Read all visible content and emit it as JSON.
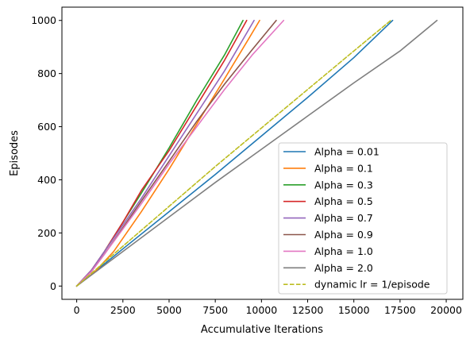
{
  "chart_data": {
    "type": "line",
    "title": "",
    "xlabel": "Accumulative Iterations",
    "ylabel": "Episodes",
    "xlim": [
      -800,
      20900
    ],
    "ylim": [
      -50,
      1050
    ],
    "xticks": [
      0,
      2500,
      5000,
      7500,
      10000,
      12500,
      15000,
      17500,
      20000
    ],
    "xtick_labels": [
      "0",
      "2500",
      "5000",
      "7500",
      "10000",
      "12500",
      "15000",
      "17500",
      "20000"
    ],
    "yticks": [
      0,
      200,
      400,
      600,
      800,
      1000
    ],
    "ytick_labels": [
      "0",
      "200",
      "400",
      "600",
      "800",
      "1000"
    ],
    "grid": false,
    "legend_position": "lower-right",
    "series": [
      {
        "name": "Alpha = 0.01",
        "color": "#1f77b4",
        "dash": "solid",
        "x": [
          0,
          1000,
          2500,
          5000,
          7500,
          10000,
          12500,
          15000,
          17100
        ],
        "y": [
          0,
          55,
          140,
          280,
          420,
          565,
          710,
          860,
          1000
        ]
      },
      {
        "name": "Alpha = 0.1",
        "color": "#ff7f0e",
        "dash": "solid",
        "x": [
          0,
          1000,
          2000,
          3500,
          5000,
          6500,
          8000,
          9300,
          9900
        ],
        "y": [
          0,
          55,
          130,
          280,
          440,
          610,
          780,
          930,
          1000
        ]
      },
      {
        "name": "Alpha = 0.3",
        "color": "#2ca02c",
        "dash": "solid",
        "x": [
          0,
          800,
          1500,
          2500,
          3500,
          5000,
          6500,
          8000,
          9000
        ],
        "y": [
          0,
          60,
          130,
          240,
          350,
          520,
          700,
          870,
          1000
        ]
      },
      {
        "name": "Alpha = 0.5",
        "color": "#d62728",
        "dash": "solid",
        "x": [
          0,
          800,
          1500,
          2500,
          3500,
          5000,
          6500,
          8000,
          9200
        ],
        "y": [
          0,
          60,
          130,
          240,
          360,
          510,
          680,
          850,
          1000
        ]
      },
      {
        "name": "Alpha = 0.7",
        "color": "#9467bd",
        "dash": "solid",
        "x": [
          0,
          800,
          1500,
          2500,
          3500,
          5000,
          6500,
          8000,
          9600
        ],
        "y": [
          0,
          60,
          130,
          230,
          330,
          490,
          650,
          810,
          1000
        ]
      },
      {
        "name": "Alpha = 0.9",
        "color": "#8c564b",
        "dash": "solid",
        "x": [
          0,
          800,
          1500,
          2500,
          3500,
          5000,
          6500,
          8000,
          9500,
          10800
        ],
        "y": [
          0,
          55,
          120,
          220,
          320,
          470,
          620,
          760,
          890,
          1000
        ]
      },
      {
        "name": "Alpha = 1.0",
        "color": "#e377c2",
        "dash": "solid",
        "x": [
          0,
          800,
          1500,
          2500,
          3500,
          5000,
          6500,
          8000,
          9500,
          11200
        ],
        "y": [
          0,
          55,
          120,
          215,
          310,
          460,
          600,
          740,
          870,
          1000
        ]
      },
      {
        "name": "Alpha = 2.0",
        "color": "#7f7f7f",
        "dash": "solid",
        "x": [
          0,
          2500,
          5000,
          7500,
          10000,
          12500,
          15000,
          17500,
          19500
        ],
        "y": [
          0,
          130,
          260,
          390,
          515,
          640,
          765,
          885,
          1000
        ]
      },
      {
        "name": "dynamic lr = 1/episode",
        "color": "#bcbd22",
        "dash": "dashed",
        "x": [
          0,
          2500,
          5000,
          7500,
          10000,
          12500,
          15000,
          17000
        ],
        "y": [
          0,
          150,
          300,
          450,
          595,
          740,
          885,
          1000
        ]
      }
    ]
  }
}
